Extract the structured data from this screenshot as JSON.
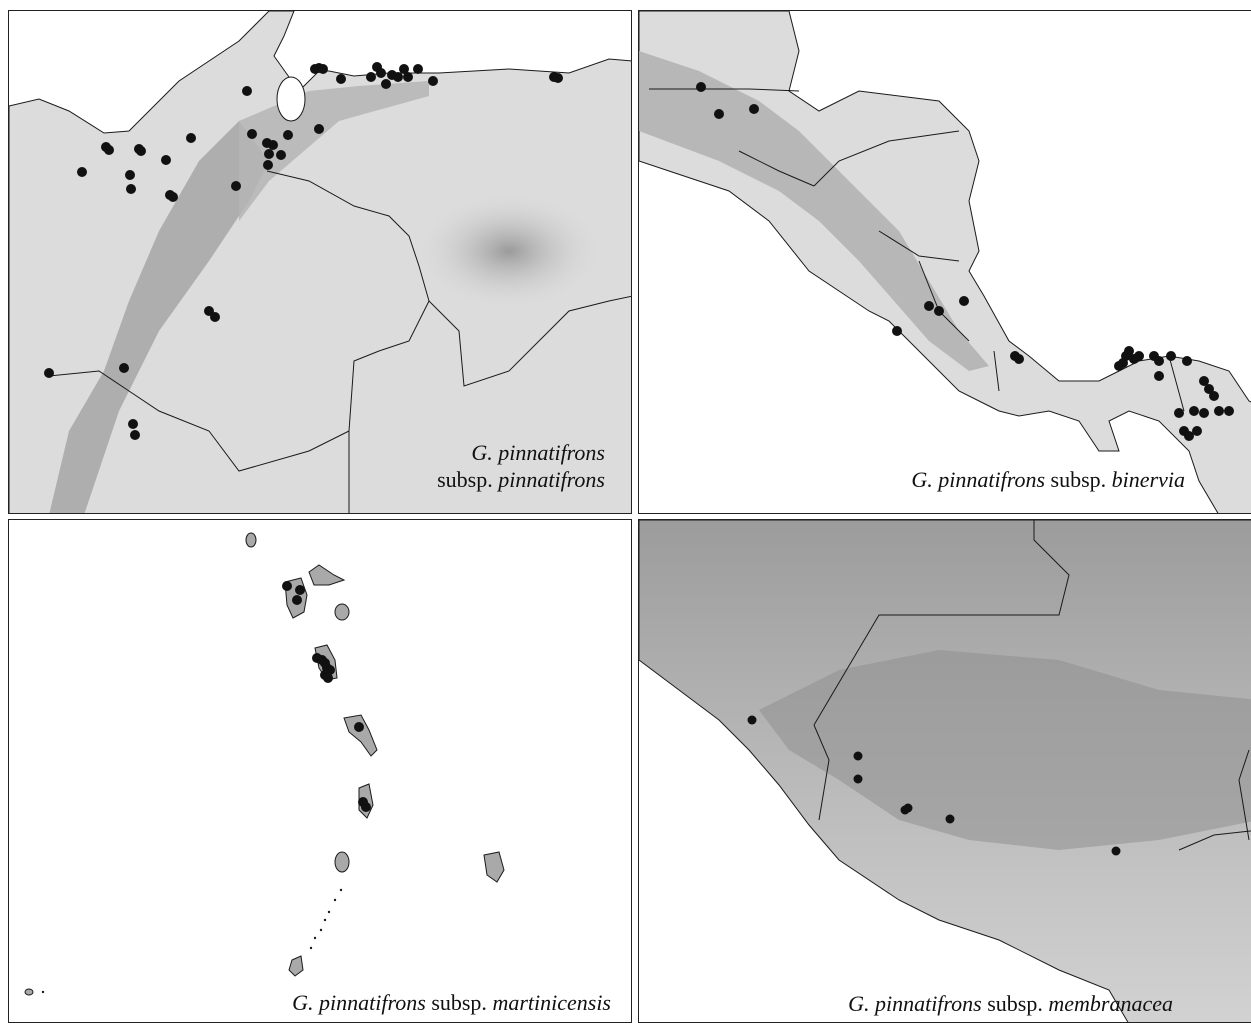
{
  "panels": [
    {
      "taxon": "G. pinnatifrons",
      "rank": "subsp.",
      "epithet": "pinnatifrons"
    },
    {
      "taxon": "G. pinnatifrons",
      "rank": "subsp.",
      "epithet": "binervia"
    },
    {
      "taxon": "G. pinnatifrons",
      "rank": "subsp.",
      "epithet": "martinicensis"
    },
    {
      "taxon": "G. pinnatifrons",
      "rank": "subsp.",
      "epithet": "membranacea"
    }
  ],
  "colors": {
    "land": "#dcdcdc",
    "relief_dark": "#8e8e8e",
    "relief_mid": "#b9b9b9",
    "island": "#a9a9a9",
    "border": "#1a1a1a",
    "record": "#111111",
    "sea": "#ffffff"
  },
  "symbol": "filled-circle"
}
